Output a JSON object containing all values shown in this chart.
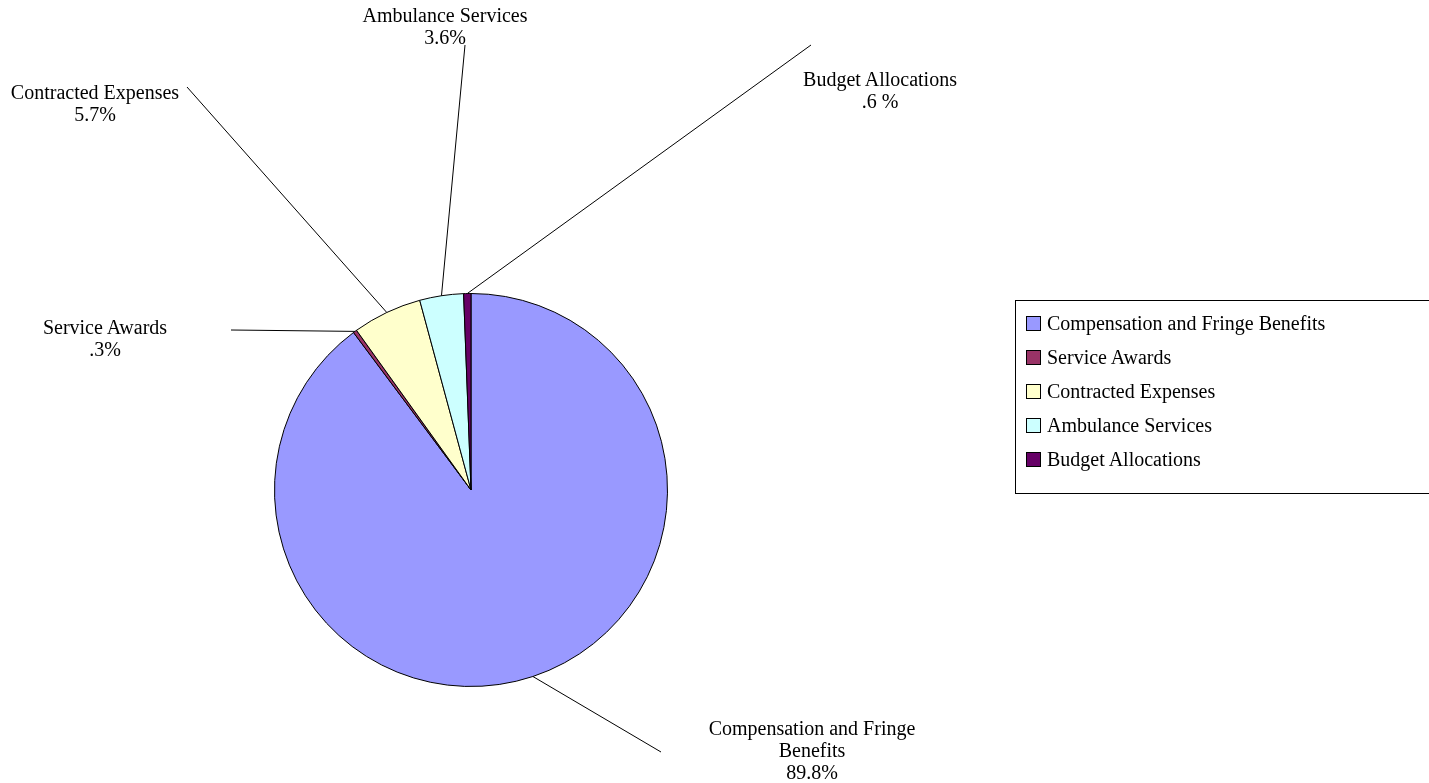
{
  "chart_data": {
    "type": "pie",
    "categories": [
      "Compensation and Fringe Benefits",
      "Service Awards",
      "Contracted Expenses",
      "Ambulance Services",
      "Budget Allocations"
    ],
    "values": [
      89.8,
      0.3,
      5.7,
      3.6,
      0.6
    ],
    "colors": [
      "#9999ff",
      "#993366",
      "#ffffcc",
      "#ccffff",
      "#660066"
    ],
    "value_labels": [
      "89.8%",
      ".3%",
      "5.7%",
      "3.6%",
      ".6 %"
    ],
    "legend": "right"
  }
}
